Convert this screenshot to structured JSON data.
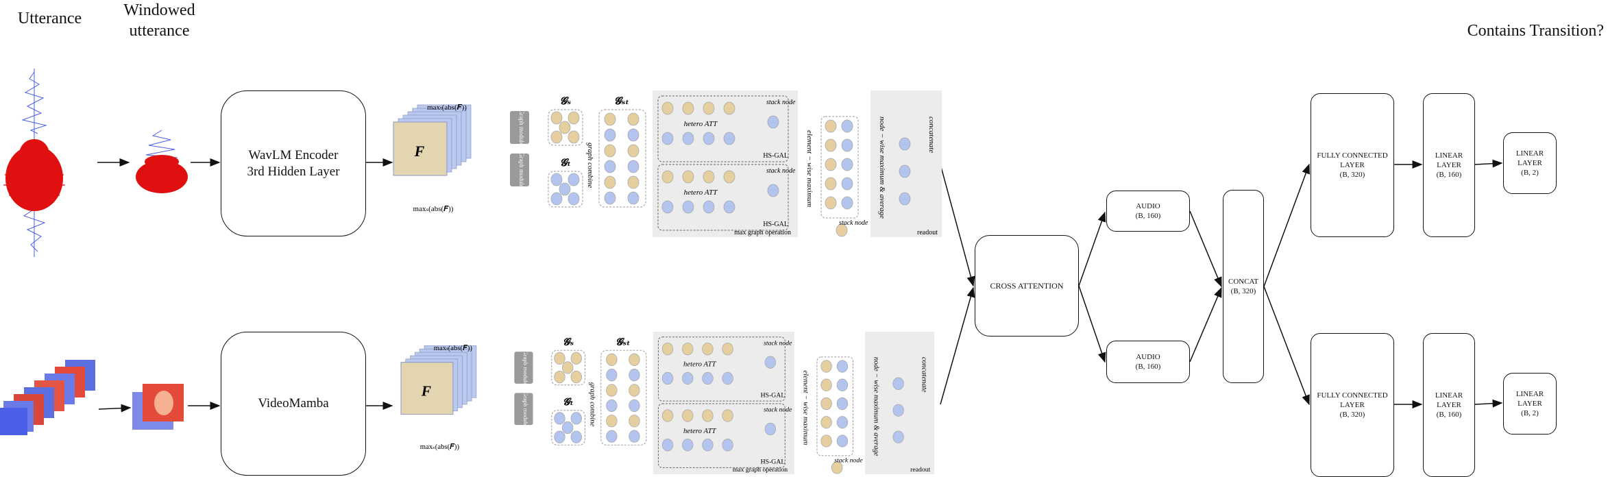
{
  "headers": {
    "utterance": "Utterance",
    "windowed": "Windowed utterance",
    "output": "Contains Transition?"
  },
  "encoders": {
    "audio": "WavLM Encoder 3rd Hidden Layer",
    "video": "VideoMamba"
  },
  "gnn": {
    "max_top": "maxₜ(abs(𝑭))",
    "max_bottom": "maxₛ(abs(𝑭))",
    "feature": "F",
    "graph_module": "Graph module",
    "gs": "𝓖ₛ",
    "gt": "𝓖ₜ",
    "gst": "𝓖ₛₜ",
    "combine": "graph combine",
    "hetero_att": "hetero ATT",
    "stack_node": "stack node",
    "hsgal": "HS-GAL",
    "max_graph_op": "max graph operation",
    "element_wise_max": "element − wise maximum",
    "node_wise": "node − wise maximum & average",
    "concatenate": "concatenate",
    "readout": "readout"
  },
  "fusion": {
    "cross_attention": "CROSS ATTENTION",
    "audio_top": "AUDIO\n(B, 160)",
    "audio_bottom": "AUDIO\n(B, 160)",
    "concat": "CONCAT\n(B, 320)"
  },
  "heads": {
    "fc_top": "FULLY CONNECTED\nLAYER\n(B, 320)",
    "lin160_top": "LINEAR\nLAYER\n(B, 160)",
    "lin2_top": "LINEAR\nLAYER\n(B, 2)",
    "fc_bottom": "FULLY CONNECTED\nLAYER\n(B, 320)",
    "lin160_bottom": "LINEAR\nLAYER\n(B, 160)",
    "lin2_bottom": "LINEAR\nLAYER\n(B, 2)"
  },
  "colors": {
    "audio_blue": "#4a5ee8",
    "audio_red": "#e01010",
    "node_tan": "#e6cf9f",
    "node_blue": "#b3c4ee",
    "panel_gray": "#ececec"
  }
}
